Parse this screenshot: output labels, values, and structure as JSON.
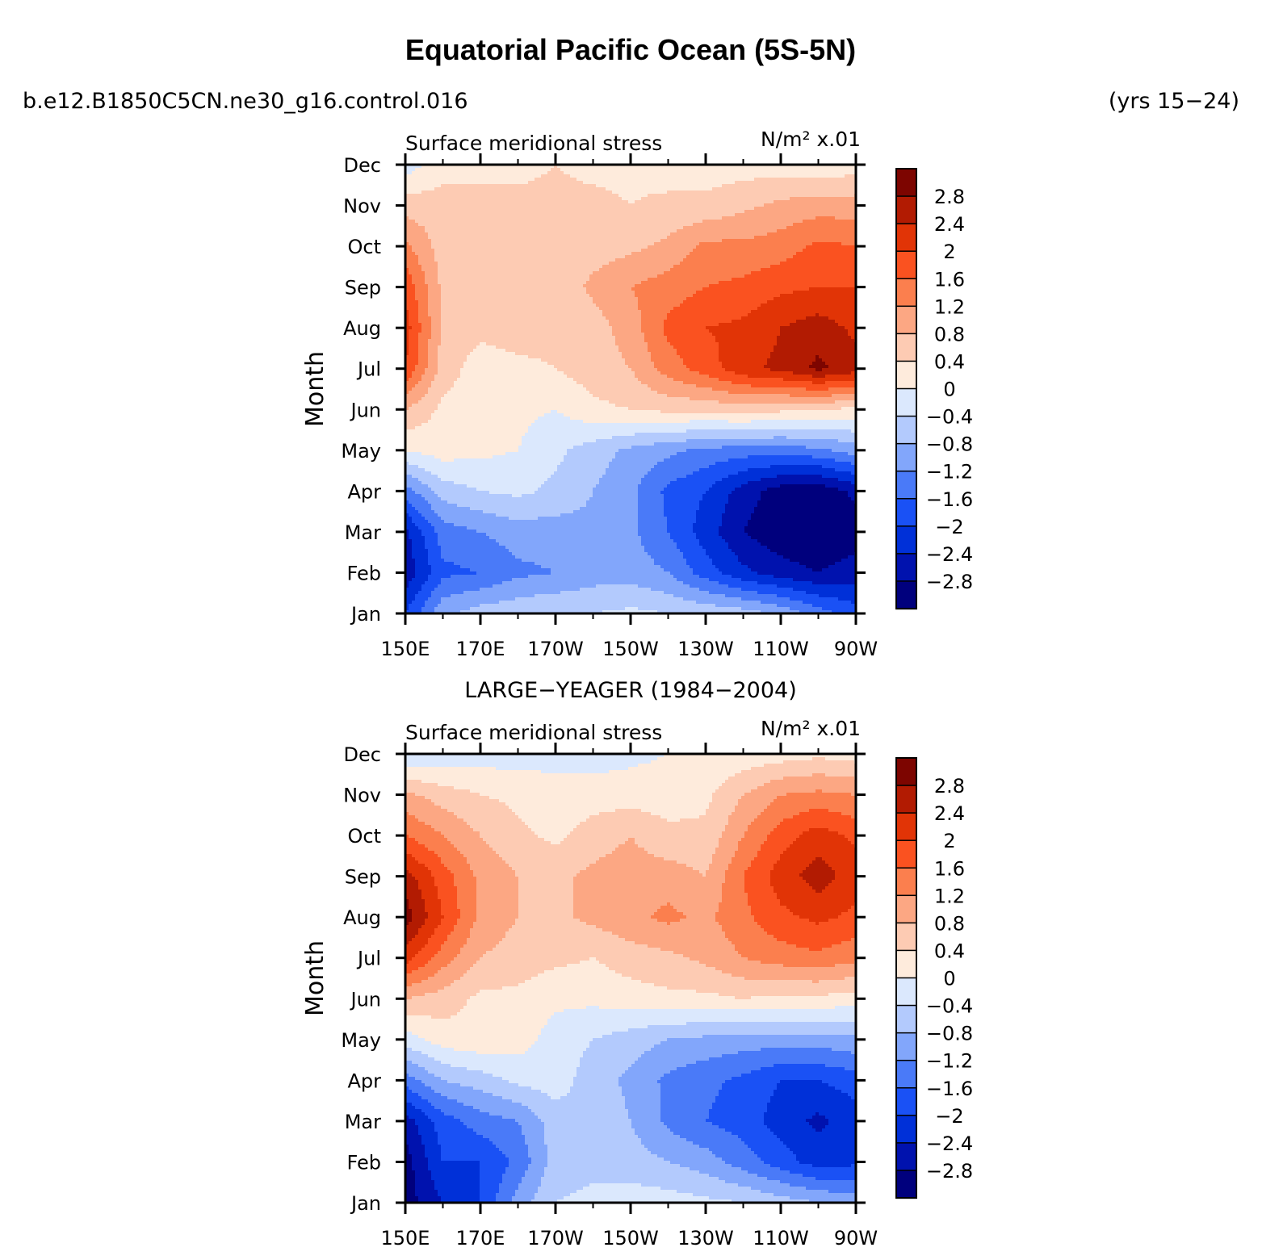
{
  "title": "Equatorial Pacific Ocean (5S-5N)",
  "left_header": "b.e12.B1850C5CN.ne30_g16.control.016",
  "right_header": "(yrs 15−24)",
  "middle_header": "LARGE−YEAGER (1984−2004)",
  "chart_data": [
    {
      "type": "heatmap",
      "panel": "top",
      "title_left": "Surface meridional stress",
      "units": "N/m² x.01",
      "ylabel": "Month",
      "x_ticks": [
        "150E",
        "170E",
        "170W",
        "150W",
        "130W",
        "110W",
        "90W"
      ],
      "y_ticks": [
        "Jan",
        "Feb",
        "Mar",
        "Apr",
        "May",
        "Jun",
        "Jul",
        "Aug",
        "Sep",
        "Oct",
        "Nov",
        "Dec"
      ],
      "x_lon": [
        150,
        160,
        170,
        180,
        190,
        200,
        210,
        220,
        230,
        240,
        250,
        260,
        270
      ],
      "values": [
        [
          -2.0,
          -0.9,
          -0.6,
          -0.5,
          -0.4,
          -0.4,
          -0.3,
          -0.4,
          -0.5,
          -0.6,
          -0.9,
          -1.4,
          -1.8
        ],
        [
          -2.7,
          -1.7,
          -1.6,
          -1.3,
          -1.2,
          -1.0,
          -1.0,
          -1.2,
          -1.8,
          -2.3,
          -2.6,
          -2.8,
          -2.6
        ],
        [
          -2.5,
          -1.4,
          -1.2,
          -1.0,
          -1.0,
          -0.9,
          -1.1,
          -1.6,
          -2.2,
          -2.8,
          -3.1,
          -3.2,
          -3.0
        ],
        [
          -1.4,
          -0.6,
          -0.4,
          -0.3,
          -0.5,
          -0.8,
          -1.1,
          -1.7,
          -2.0,
          -2.6,
          -3.0,
          -3.1,
          -2.7
        ],
        [
          0.0,
          0.2,
          0.1,
          0.0,
          -0.3,
          -0.6,
          -0.9,
          -1.1,
          -1.3,
          -1.4,
          -1.4,
          -1.3,
          -1.0
        ],
        [
          0.8,
          0.3,
          0.2,
          0.1,
          0.0,
          0.3,
          0.4,
          0.5,
          0.5,
          0.6,
          0.5,
          0.4,
          0.3
        ],
        [
          2.0,
          0.6,
          0.2,
          0.3,
          0.4,
          0.6,
          0.8,
          1.4,
          1.8,
          2.3,
          2.5,
          2.9,
          2.6
        ],
        [
          2.2,
          0.7,
          0.5,
          0.6,
          0.5,
          0.6,
          1.0,
          1.7,
          2.0,
          2.1,
          2.4,
          2.6,
          2.3
        ],
        [
          1.9,
          0.7,
          0.6,
          0.6,
          0.5,
          0.9,
          1.2,
          1.4,
          1.6,
          1.7,
          1.9,
          2.0,
          2.0
        ],
        [
          1.3,
          0.6,
          0.6,
          0.6,
          0.6,
          0.6,
          0.7,
          0.9,
          1.3,
          1.3,
          1.4,
          1.7,
          1.6
        ],
        [
          0.6,
          0.6,
          0.5,
          0.5,
          0.5,
          0.5,
          0.4,
          0.5,
          0.5,
          0.7,
          0.9,
          1.0,
          1.0
        ],
        [
          -0.2,
          0.2,
          0.3,
          0.3,
          0.4,
          0.3,
          0.3,
          0.2,
          0.2,
          0.2,
          0.2,
          0.1,
          0.2
        ]
      ]
    },
    {
      "type": "heatmap",
      "panel": "bottom",
      "title_left": "Surface meridional stress",
      "units": "N/m² x.01",
      "ylabel": "Month",
      "x_ticks": [
        "150E",
        "170E",
        "170W",
        "150W",
        "130W",
        "110W",
        "90W"
      ],
      "y_ticks": [
        "Jan",
        "Feb",
        "Mar",
        "Apr",
        "May",
        "Jun",
        "Jul",
        "Aug",
        "Sep",
        "Oct",
        "Nov",
        "Dec"
      ],
      "x_lon": [
        150,
        160,
        170,
        180,
        190,
        200,
        210,
        220,
        230,
        240,
        250,
        260,
        270
      ],
      "values": [
        [
          -3.0,
          -2.4,
          -2.0,
          -1.0,
          -0.4,
          -0.3,
          -0.2,
          -0.2,
          -0.3,
          -0.4,
          -0.6,
          -0.8,
          -0.9
        ],
        [
          -3.0,
          -2.0,
          -2.0,
          -1.5,
          -0.6,
          -0.5,
          -0.6,
          -0.8,
          -1.0,
          -1.4,
          -1.8,
          -2.2,
          -2.1
        ],
        [
          -2.6,
          -1.8,
          -1.4,
          -1.2,
          -0.6,
          -0.5,
          -0.8,
          -1.3,
          -1.6,
          -1.8,
          -2.2,
          -2.5,
          -2.2
        ],
        [
          -1.4,
          -0.8,
          -0.6,
          -0.3,
          -0.2,
          -0.6,
          -0.9,
          -1.3,
          -1.5,
          -1.7,
          -2.0,
          -2.0,
          -1.8
        ],
        [
          -0.2,
          0.2,
          0.3,
          0.2,
          -0.2,
          -0.4,
          -0.6,
          -0.8,
          -0.9,
          -1.0,
          -1.0,
          -1.0,
          -0.9
        ],
        [
          0.8,
          0.6,
          0.3,
          0.3,
          0.1,
          0.1,
          0.2,
          0.3,
          0.3,
          0.4,
          0.3,
          0.3,
          0.2
        ],
        [
          2.2,
          1.4,
          0.8,
          0.6,
          0.5,
          0.4,
          0.6,
          0.7,
          0.9,
          1.2,
          1.4,
          1.5,
          1.3
        ],
        [
          3.0,
          2.0,
          1.1,
          0.8,
          0.7,
          0.9,
          1.1,
          1.3,
          1.1,
          1.5,
          1.9,
          2.1,
          1.9
        ],
        [
          2.6,
          1.8,
          1.1,
          0.8,
          0.7,
          0.9,
          1.0,
          1.0,
          0.8,
          1.6,
          2.2,
          2.6,
          2.2
        ],
        [
          1.6,
          1.2,
          0.8,
          0.5,
          0.3,
          0.6,
          0.8,
          0.5,
          0.5,
          1.2,
          1.8,
          2.2,
          1.9
        ],
        [
          0.9,
          0.6,
          0.4,
          0.3,
          0.1,
          0.2,
          0.2,
          0.2,
          0.3,
          0.8,
          1.2,
          1.3,
          1.2
        ],
        [
          -0.4,
          -0.3,
          -0.2,
          -0.2,
          -0.1,
          -0.2,
          -0.1,
          0.0,
          0.1,
          0.1,
          0.2,
          0.3,
          0.2
        ]
      ]
    }
  ],
  "colorbar": {
    "labels": [
      "2.8",
      "2.4",
      "2",
      "1.6",
      "1.2",
      "0.8",
      "0.4",
      "0",
      "−0.4",
      "−0.8",
      "−1.2",
      "−1.6",
      "−2",
      "−2.4",
      "−2.8"
    ],
    "levels": [
      -2.8,
      -2.4,
      -2.0,
      -1.6,
      -1.2,
      -0.8,
      -0.4,
      0,
      0.4,
      0.8,
      1.2,
      1.6,
      2.0,
      2.4,
      2.8
    ],
    "colors": [
      "#00007d",
      "#0012ae",
      "#0030d8",
      "#1a51f5",
      "#4a7af8",
      "#82a6fb",
      "#b3cafd",
      "#dbe8fd",
      "#feebdc",
      "#fdcbb3",
      "#fca783",
      "#fb7f4e",
      "#fa5220",
      "#e13406",
      "#b21b02",
      "#7d0500"
    ]
  }
}
